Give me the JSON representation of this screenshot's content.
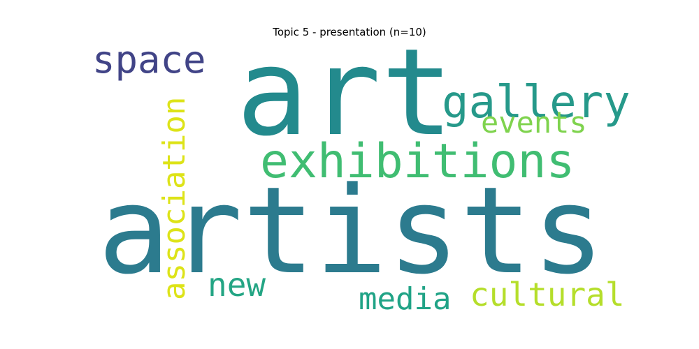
{
  "title": "Topic 5 - presentation (n=10)",
  "words": [
    {
      "text": "artists",
      "color": "#2c7b8e"
    },
    {
      "text": "art",
      "color": "#238a8d"
    },
    {
      "text": "exhibitions",
      "color": "#40bd72"
    },
    {
      "text": "gallery",
      "color": "#26998a"
    },
    {
      "text": "space",
      "color": "#414487"
    },
    {
      "text": "association",
      "color": "#dde318"
    },
    {
      "text": "events",
      "color": "#7fd34e"
    },
    {
      "text": "new",
      "color": "#24a584"
    },
    {
      "text": "media",
      "color": "#20a386"
    },
    {
      "text": "cultural",
      "color": "#b5de2b"
    }
  ]
}
